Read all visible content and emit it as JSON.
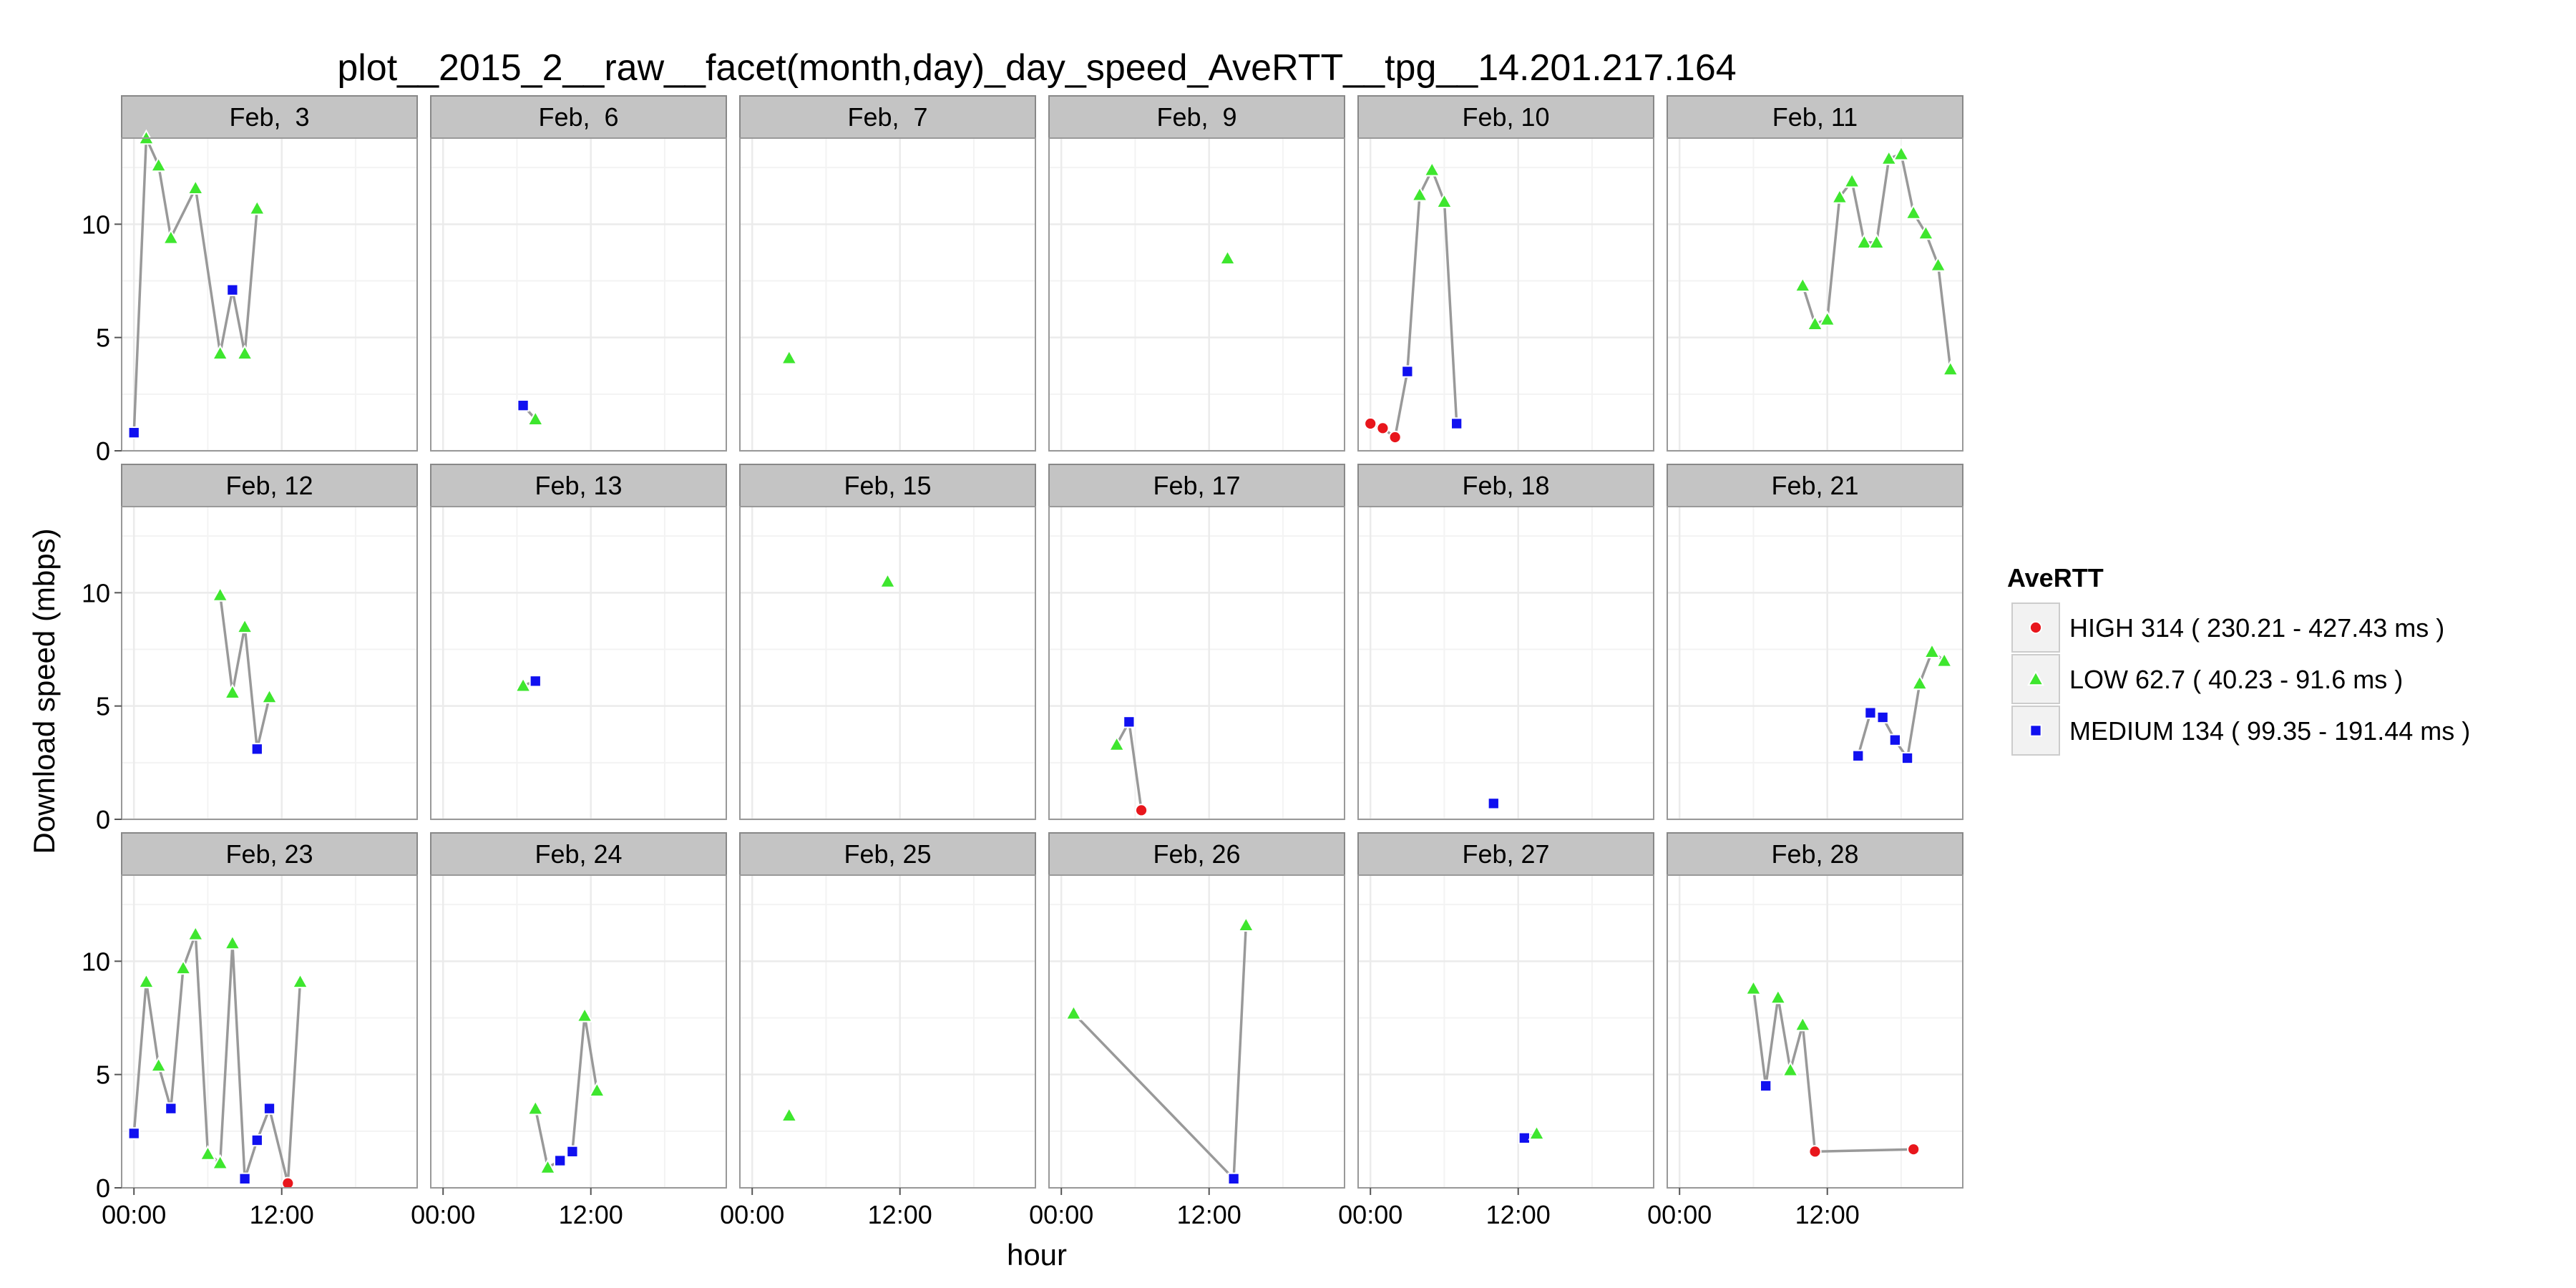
{
  "chart_data": {
    "type": "scatter",
    "title": "plot__2015_2__raw__facet(month,day)_day_speed_AveRTT__tpg__14.201.217.164",
    "xlabel": "hour",
    "ylabel": "Download speed (mbps)",
    "xlim": [
      -1,
      23
    ],
    "ylim": [
      0,
      13.8
    ],
    "x_ticks": [
      0,
      12
    ],
    "x_tick_labels": [
      "00:00",
      "12:00"
    ],
    "y_ticks": [
      0,
      5,
      10
    ],
    "y_tick_labels": [
      "0",
      "5",
      "10"
    ],
    "grid": true,
    "connect_points": true,
    "legend": {
      "title": "AveRTT",
      "position": "right",
      "items": [
        {
          "key": "HIGH",
          "label": "HIGH 314 ( 230.21 - 427.43 ms )",
          "shape": "circle",
          "color": "#e8161c"
        },
        {
          "key": "LOW",
          "label": "LOW 62.7 ( 40.23 - 91.6 ms )",
          "shape": "triangle",
          "color": "#3ee62e"
        },
        {
          "key": "MEDIUM",
          "label": "MEDIUM 134 ( 99.35 - 191.44 ms )",
          "shape": "square",
          "color": "#1010f0"
        }
      ]
    },
    "colors": {
      "line": "#999999",
      "strip": "#c4c4c4",
      "grid": "#ebebeb",
      "panel_border": "#999999"
    },
    "panels": [
      {
        "label": "Feb,  3",
        "points": [
          [
            0,
            0.8,
            "MEDIUM"
          ],
          [
            1,
            13.8,
            "LOW"
          ],
          [
            2,
            12.6,
            "LOW"
          ],
          [
            3,
            9.4,
            "LOW"
          ],
          [
            5,
            11.6,
            "LOW"
          ],
          [
            7,
            4.3,
            "LOW"
          ],
          [
            8,
            7.1,
            "MEDIUM"
          ],
          [
            9,
            4.3,
            "LOW"
          ],
          [
            10,
            10.7,
            "LOW"
          ]
        ]
      },
      {
        "label": "Feb,  6",
        "points": [
          [
            6.5,
            2.0,
            "MEDIUM"
          ],
          [
            7.5,
            1.4,
            "LOW"
          ]
        ]
      },
      {
        "label": "Feb,  7",
        "points": [
          [
            3,
            4.1,
            "LOW"
          ]
        ]
      },
      {
        "label": "Feb,  9",
        "points": [
          [
            13.5,
            8.5,
            "LOW"
          ]
        ]
      },
      {
        "label": "Feb, 10",
        "points": [
          [
            0,
            1.2,
            "HIGH"
          ],
          [
            1,
            1.0,
            "HIGH"
          ],
          [
            2,
            0.6,
            "HIGH"
          ],
          [
            3,
            3.5,
            "MEDIUM"
          ],
          [
            4,
            11.3,
            "LOW"
          ],
          [
            5,
            12.4,
            "LOW"
          ],
          [
            6,
            11.0,
            "LOW"
          ],
          [
            7,
            1.2,
            "MEDIUM"
          ]
        ]
      },
      {
        "label": "Feb, 11",
        "points": [
          [
            10,
            7.3,
            "LOW"
          ],
          [
            11,
            5.6,
            "LOW"
          ],
          [
            12,
            5.8,
            "LOW"
          ],
          [
            13,
            11.2,
            "LOW"
          ],
          [
            14,
            11.9,
            "LOW"
          ],
          [
            15,
            9.2,
            "LOW"
          ],
          [
            16,
            9.2,
            "LOW"
          ],
          [
            17,
            12.9,
            "LOW"
          ],
          [
            18,
            13.1,
            "LOW"
          ],
          [
            19,
            10.5,
            "LOW"
          ],
          [
            20,
            9.6,
            "LOW"
          ],
          [
            21,
            8.2,
            "LOW"
          ],
          [
            22,
            3.6,
            "LOW"
          ]
        ]
      },
      {
        "label": "Feb, 12",
        "points": [
          [
            7,
            9.9,
            "LOW"
          ],
          [
            8,
            5.6,
            "LOW"
          ],
          [
            9,
            8.5,
            "LOW"
          ],
          [
            10,
            3.1,
            "MEDIUM"
          ],
          [
            11,
            5.4,
            "LOW"
          ]
        ]
      },
      {
        "label": "Feb, 13",
        "points": [
          [
            6.5,
            5.9,
            "LOW"
          ],
          [
            7.5,
            6.1,
            "MEDIUM"
          ]
        ]
      },
      {
        "label": "Feb, 15",
        "points": [
          [
            11,
            10.5,
            "LOW"
          ]
        ]
      },
      {
        "label": "Feb, 17",
        "points": [
          [
            4.5,
            3.3,
            "LOW"
          ],
          [
            5.5,
            4.3,
            "MEDIUM"
          ],
          [
            6.5,
            0.4,
            "HIGH"
          ]
        ]
      },
      {
        "label": "Feb, 18",
        "points": [
          [
            10,
            0.7,
            "MEDIUM"
          ]
        ]
      },
      {
        "label": "Feb, 21",
        "points": [
          [
            14.5,
            2.8,
            "MEDIUM"
          ],
          [
            15.5,
            4.7,
            "MEDIUM"
          ],
          [
            16.5,
            4.5,
            "MEDIUM"
          ],
          [
            17.5,
            3.5,
            "MEDIUM"
          ],
          [
            18.5,
            2.7,
            "MEDIUM"
          ],
          [
            19.5,
            6.0,
            "LOW"
          ],
          [
            20.5,
            7.4,
            "LOW"
          ],
          [
            21.5,
            7.0,
            "LOW"
          ]
        ]
      },
      {
        "label": "Feb, 23",
        "points": [
          [
            0,
            2.4,
            "MEDIUM"
          ],
          [
            1,
            9.1,
            "LOW"
          ],
          [
            2,
            5.4,
            "LOW"
          ],
          [
            3,
            3.5,
            "MEDIUM"
          ],
          [
            4,
            9.7,
            "LOW"
          ],
          [
            5,
            11.2,
            "LOW"
          ],
          [
            6,
            1.5,
            "LOW"
          ],
          [
            7,
            1.1,
            "LOW"
          ],
          [
            8,
            10.8,
            "LOW"
          ],
          [
            9,
            0.4,
            "MEDIUM"
          ],
          [
            10,
            2.1,
            "MEDIUM"
          ],
          [
            11,
            3.5,
            "MEDIUM"
          ],
          [
            12.5,
            0.2,
            "HIGH"
          ],
          [
            13.5,
            9.1,
            "LOW"
          ]
        ]
      },
      {
        "label": "Feb, 24",
        "points": [
          [
            7.5,
            3.5,
            "LOW"
          ],
          [
            8.5,
            0.9,
            "LOW"
          ],
          [
            9.5,
            1.2,
            "MEDIUM"
          ],
          [
            10.5,
            1.6,
            "MEDIUM"
          ],
          [
            11.5,
            7.6,
            "LOW"
          ],
          [
            12.5,
            4.3,
            "LOW"
          ]
        ]
      },
      {
        "label": "Feb, 25",
        "points": [
          [
            3,
            3.2,
            "LOW"
          ]
        ]
      },
      {
        "label": "Feb, 26",
        "points": [
          [
            1,
            7.7,
            "LOW"
          ],
          [
            14,
            0.4,
            "MEDIUM"
          ],
          [
            15,
            11.6,
            "LOW"
          ]
        ]
      },
      {
        "label": "Feb, 27",
        "points": [
          [
            12.5,
            2.2,
            "MEDIUM"
          ],
          [
            13.5,
            2.4,
            "LOW"
          ]
        ]
      },
      {
        "label": "Feb, 28",
        "points": [
          [
            6,
            8.8,
            "LOW"
          ],
          [
            7,
            4.5,
            "MEDIUM"
          ],
          [
            8,
            8.4,
            "LOW"
          ],
          [
            9,
            5.2,
            "LOW"
          ],
          [
            10,
            7.2,
            "LOW"
          ],
          [
            11,
            1.6,
            "HIGH"
          ],
          [
            19,
            1.7,
            "HIGH"
          ]
        ]
      }
    ]
  }
}
